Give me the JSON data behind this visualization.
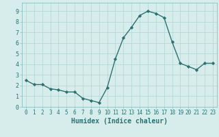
{
  "x": [
    0,
    1,
    2,
    3,
    4,
    5,
    6,
    7,
    8,
    9,
    10,
    11,
    12,
    13,
    14,
    15,
    16,
    17,
    18,
    19,
    20,
    21,
    22,
    23
  ],
  "y": [
    2.5,
    2.1,
    2.1,
    1.7,
    1.6,
    1.4,
    1.4,
    0.8,
    0.6,
    0.4,
    1.8,
    4.5,
    6.5,
    7.5,
    8.6,
    9.0,
    8.8,
    8.4,
    6.1,
    4.1,
    3.8,
    3.5,
    4.1,
    4.1
  ],
  "xlabel": "Humidex (Indice chaleur)",
  "xlim": [
    -0.5,
    23.5
  ],
  "ylim": [
    0,
    9.8
  ],
  "line_color": "#2d7070",
  "marker": "D",
  "marker_size": 2.2,
  "bg_color": "#d6edec",
  "grid_color": "#b8d8d6",
  "yticks": [
    0,
    1,
    2,
    3,
    4,
    5,
    6,
    7,
    8,
    9
  ],
  "tick_fontsize": 5.5,
  "xlabel_fontsize": 7.0,
  "linewidth": 1.0
}
